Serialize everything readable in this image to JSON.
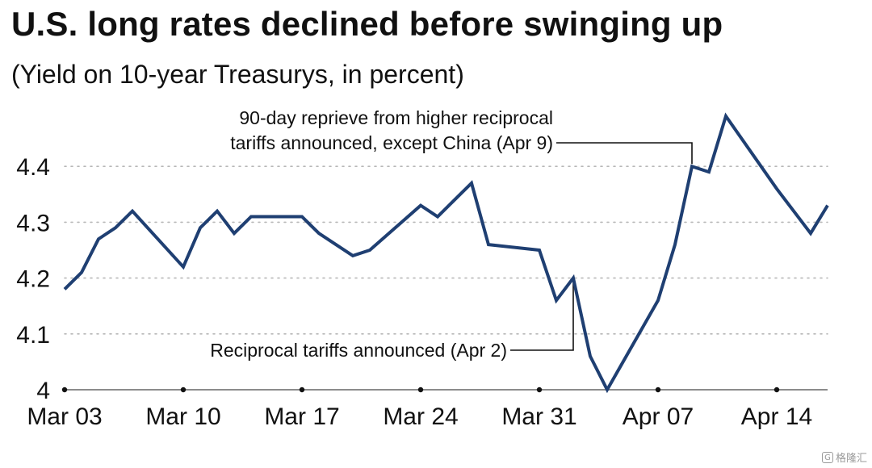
{
  "chart_data": {
    "type": "line",
    "title": "U.S. long rates declined before swinging up",
    "subtitle": "(Yield on 10-year Treasurys, in percent)",
    "xlabel": "",
    "ylabel": "",
    "x": [
      "2025-03-03",
      "2025-03-04",
      "2025-03-05",
      "2025-03-06",
      "2025-03-07",
      "2025-03-10",
      "2025-03-11",
      "2025-03-12",
      "2025-03-13",
      "2025-03-14",
      "2025-03-17",
      "2025-03-18",
      "2025-03-19",
      "2025-03-20",
      "2025-03-21",
      "2025-03-24",
      "2025-03-25",
      "2025-03-26",
      "2025-03-27",
      "2025-03-28",
      "2025-03-31",
      "2025-04-01",
      "2025-04-02",
      "2025-04-03",
      "2025-04-04",
      "2025-04-07",
      "2025-04-08",
      "2025-04-09",
      "2025-04-10",
      "2025-04-11",
      "2025-04-14",
      "2025-04-15",
      "2025-04-16",
      "2025-04-17"
    ],
    "series": [
      {
        "values": [
          4.18,
          4.21,
          4.27,
          4.29,
          4.32,
          4.22,
          4.29,
          4.32,
          4.28,
          4.31,
          4.31,
          4.28,
          4.26,
          4.24,
          4.25,
          4.33,
          4.31,
          4.34,
          4.37,
          4.26,
          4.25,
          4.16,
          4.2,
          4.06,
          4.0,
          4.16,
          4.26,
          4.4,
          4.39,
          4.49,
          4.36,
          4.32,
          4.28,
          4.33
        ],
        "color": "#1f3f72"
      }
    ],
    "xticks": [
      "Mar 03",
      "Mar 10",
      "Mar 17",
      "Mar 24",
      "Mar 31",
      "Apr 07",
      "Apr 14"
    ],
    "xtick_dates": [
      "2025-03-03",
      "2025-03-10",
      "2025-03-17",
      "2025-03-24",
      "2025-03-31",
      "2025-04-07",
      "2025-04-14"
    ],
    "yticks": [
      "4",
      "4.1",
      "4.2",
      "4.3",
      "4.4"
    ],
    "ylim": [
      4.0,
      4.5
    ],
    "xlim": [
      "2025-03-03",
      "2025-04-17"
    ],
    "grid": "horizontal dotted",
    "annotations": [
      {
        "lines": [
          "Reciprocal tariffs announced (Apr 2)"
        ],
        "date": "2025-04-02",
        "value": 4.2
      },
      {
        "lines": [
          "90-day reprieve from higher reciprocal",
          "tariffs announced, except China (Apr 9)"
        ],
        "date": "2025-04-09",
        "value": 4.4
      }
    ]
  },
  "watermark": {
    "icon": "G",
    "text": "格隆汇"
  }
}
